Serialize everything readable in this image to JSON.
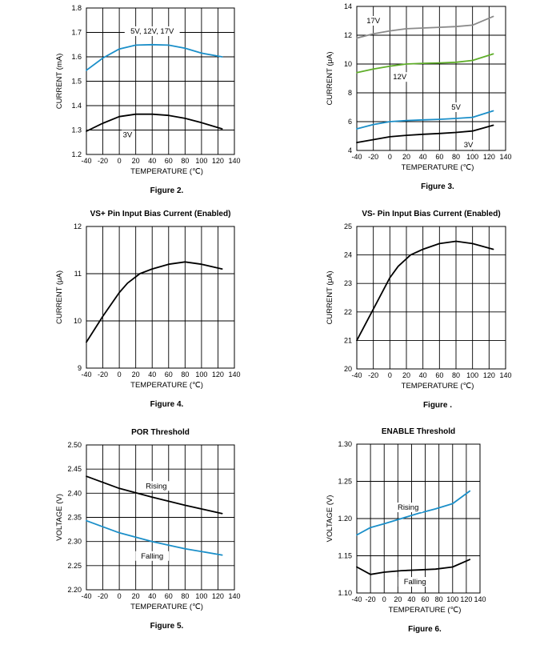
{
  "chart_data": [
    {
      "id": "fig2",
      "type": "line",
      "title": "",
      "caption": "Figure 2.",
      "xlabel": "TEMPERATURE (℃)",
      "ylabel": "CURRENT (mA)",
      "xlim": [
        -40,
        140
      ],
      "ylim": [
        1.2,
        1.8
      ],
      "xticks": [
        -40,
        -20,
        0,
        20,
        40,
        60,
        80,
        100,
        120,
        140
      ],
      "yticks": [
        1.2,
        1.3,
        1.4,
        1.5,
        1.6,
        1.7,
        1.8
      ],
      "ytick_labels": [
        "1.2",
        "1.3",
        "1.4",
        "1.5",
        "1.6",
        "1.7",
        "1.8"
      ],
      "series": [
        {
          "name": "5V, 12V, 17V",
          "color": "#1b8fc9",
          "x": [
            -40,
            -20,
            0,
            20,
            40,
            60,
            80,
            100,
            125
          ],
          "y": [
            1.545,
            1.595,
            1.632,
            1.648,
            1.65,
            1.648,
            1.635,
            1.615,
            1.6
          ],
          "label_at": [
            40,
            1.705
          ]
        },
        {
          "name": "3V",
          "color": "#000000",
          "x": [
            -40,
            -20,
            0,
            20,
            40,
            60,
            80,
            100,
            125
          ],
          "y": [
            1.295,
            1.328,
            1.355,
            1.365,
            1.365,
            1.36,
            1.348,
            1.33,
            1.305
          ],
          "label_at": [
            10,
            1.28
          ]
        }
      ]
    },
    {
      "id": "fig3",
      "type": "line",
      "title": "",
      "caption": "Figure 3.",
      "xlabel": "TEMPERATURE (℃)",
      "ylabel": "CURRENT (μA)",
      "xlim": [
        -40,
        140
      ],
      "ylim": [
        4,
        14
      ],
      "xticks": [
        -40,
        -20,
        0,
        20,
        40,
        60,
        80,
        100,
        120,
        140
      ],
      "yticks": [
        4,
        6,
        8,
        10,
        12,
        14
      ],
      "ytick_labels": [
        "4",
        "6",
        "8",
        "10",
        "12",
        "14"
      ],
      "series": [
        {
          "name": "17V",
          "color": "#8a8a8a",
          "x": [
            -40,
            -20,
            0,
            20,
            40,
            60,
            80,
            100,
            125
          ],
          "y": [
            11.8,
            12.1,
            12.3,
            12.45,
            12.5,
            12.55,
            12.6,
            12.7,
            13.3
          ],
          "label_at": [
            -20,
            13.0
          ]
        },
        {
          "name": "12V",
          "color": "#5fae2a",
          "x": [
            -40,
            -20,
            0,
            20,
            40,
            60,
            80,
            100,
            125
          ],
          "y": [
            9.4,
            9.65,
            9.85,
            10.0,
            10.05,
            10.08,
            10.12,
            10.25,
            10.7
          ],
          "label_at": [
            12,
            9.1
          ]
        },
        {
          "name": "5V",
          "color": "#1b8fc9",
          "x": [
            -40,
            -20,
            0,
            20,
            40,
            60,
            80,
            100,
            125
          ],
          "y": [
            5.5,
            5.8,
            6.0,
            6.08,
            6.12,
            6.16,
            6.22,
            6.3,
            6.75
          ],
          "label_at": [
            80,
            7.0
          ]
        },
        {
          "name": "3V",
          "color": "#000000",
          "x": [
            -40,
            -20,
            0,
            20,
            40,
            60,
            80,
            100,
            125
          ],
          "y": [
            4.55,
            4.75,
            4.95,
            5.05,
            5.12,
            5.18,
            5.25,
            5.35,
            5.75
          ],
          "label_at": [
            95,
            4.4
          ]
        }
      ]
    },
    {
      "id": "fig4",
      "type": "line",
      "title": "VS+ Pin Input Bias Current (Enabled)",
      "caption": "Figure 4.",
      "xlabel": "TEMPERATURE (℃)",
      "ylabel": "CURRENT (μA)",
      "xlim": [
        -40,
        140
      ],
      "ylim": [
        9,
        12
      ],
      "xticks": [
        -40,
        -20,
        0,
        20,
        40,
        60,
        80,
        100,
        120,
        140
      ],
      "yticks": [
        9,
        10,
        11,
        12
      ],
      "ytick_labels": [
        "9",
        "10",
        "11",
        "12"
      ],
      "series": [
        {
          "name": "",
          "color": "#000000",
          "x": [
            -40,
            -20,
            0,
            10,
            25,
            40,
            60,
            80,
            100,
            125
          ],
          "y": [
            9.55,
            10.1,
            10.6,
            10.8,
            11.0,
            11.1,
            11.2,
            11.25,
            11.2,
            11.1
          ],
          "label_at": null
        }
      ]
    },
    {
      "id": "fig5b",
      "type": "line",
      "title": "VS- Pin Input Bias Current (Enabled)",
      "caption": "Figure .",
      "xlabel": "TEMPERATURE (℃)",
      "ylabel": "CURRENT (μA)",
      "xlim": [
        -40,
        140
      ],
      "ylim": [
        20,
        25
      ],
      "xticks": [
        -40,
        -20,
        0,
        20,
        40,
        60,
        80,
        100,
        120,
        140
      ],
      "yticks": [
        20,
        21,
        22,
        23,
        24,
        25
      ],
      "ytick_labels": [
        "20",
        "21",
        "22",
        "23",
        "24",
        "25"
      ],
      "series": [
        {
          "name": "",
          "color": "#000000",
          "x": [
            -40,
            -20,
            0,
            10,
            25,
            40,
            60,
            80,
            100,
            125
          ],
          "y": [
            21.0,
            22.1,
            23.2,
            23.6,
            24.0,
            24.2,
            24.4,
            24.48,
            24.4,
            24.2
          ],
          "label_at": null
        }
      ]
    },
    {
      "id": "fig5",
      "type": "line",
      "title": "POR Threshold",
      "caption": "Figure 5.",
      "xlabel": "TEMPERATURE (℃)",
      "ylabel": "VOLTAGE (V)",
      "xlim": [
        -40,
        140
      ],
      "ylim": [
        2.2,
        2.5
      ],
      "xticks": [
        -40,
        -20,
        0,
        20,
        40,
        60,
        80,
        100,
        120,
        140
      ],
      "yticks": [
        2.2,
        2.25,
        2.3,
        2.35,
        2.4,
        2.45,
        2.5
      ],
      "ytick_labels": [
        "2.20",
        "2.25",
        "2.30",
        "2.35",
        "2.40",
        "2.45",
        "2.50"
      ],
      "series": [
        {
          "name": "Rising",
          "color": "#000000",
          "x": [
            -40,
            0,
            40,
            80,
            125
          ],
          "y": [
            2.435,
            2.41,
            2.392,
            2.375,
            2.358
          ],
          "label_at": [
            45,
            2.415
          ]
        },
        {
          "name": "Falling",
          "color": "#1b8fc9",
          "x": [
            -40,
            0,
            40,
            80,
            125
          ],
          "y": [
            2.343,
            2.318,
            2.3,
            2.285,
            2.272
          ],
          "label_at": [
            40,
            2.27
          ]
        }
      ]
    },
    {
      "id": "fig6",
      "type": "line",
      "title": "ENABLE Threshold",
      "caption": "Figure 6.",
      "xlabel": "TEMPERATURE (℃)",
      "ylabel": "VOLTAGE (V)",
      "xlim": [
        -40,
        140
      ],
      "ylim": [
        1.1,
        1.3
      ],
      "xticks": [
        -40,
        -20,
        0,
        20,
        40,
        60,
        80,
        100,
        120,
        140
      ],
      "yticks": [
        1.1,
        1.15,
        1.2,
        1.25,
        1.3
      ],
      "ytick_labels": [
        "1.10",
        "1.15",
        "1.20",
        "1.25",
        "1.30"
      ],
      "series": [
        {
          "name": "Rising",
          "color": "#1b8fc9",
          "x": [
            -40,
            -20,
            0,
            25,
            50,
            75,
            100,
            125
          ],
          "y": [
            1.178,
            1.188,
            1.193,
            1.2,
            1.207,
            1.213,
            1.22,
            1.237
          ],
          "label_at": [
            35,
            1.215
          ]
        },
        {
          "name": "Falling",
          "color": "#000000",
          "x": [
            -40,
            -20,
            0,
            25,
            50,
            75,
            100,
            125
          ],
          "y": [
            1.135,
            1.125,
            1.128,
            1.13,
            1.131,
            1.132,
            1.135,
            1.145
          ],
          "label_at": [
            45,
            1.115
          ]
        }
      ]
    }
  ]
}
